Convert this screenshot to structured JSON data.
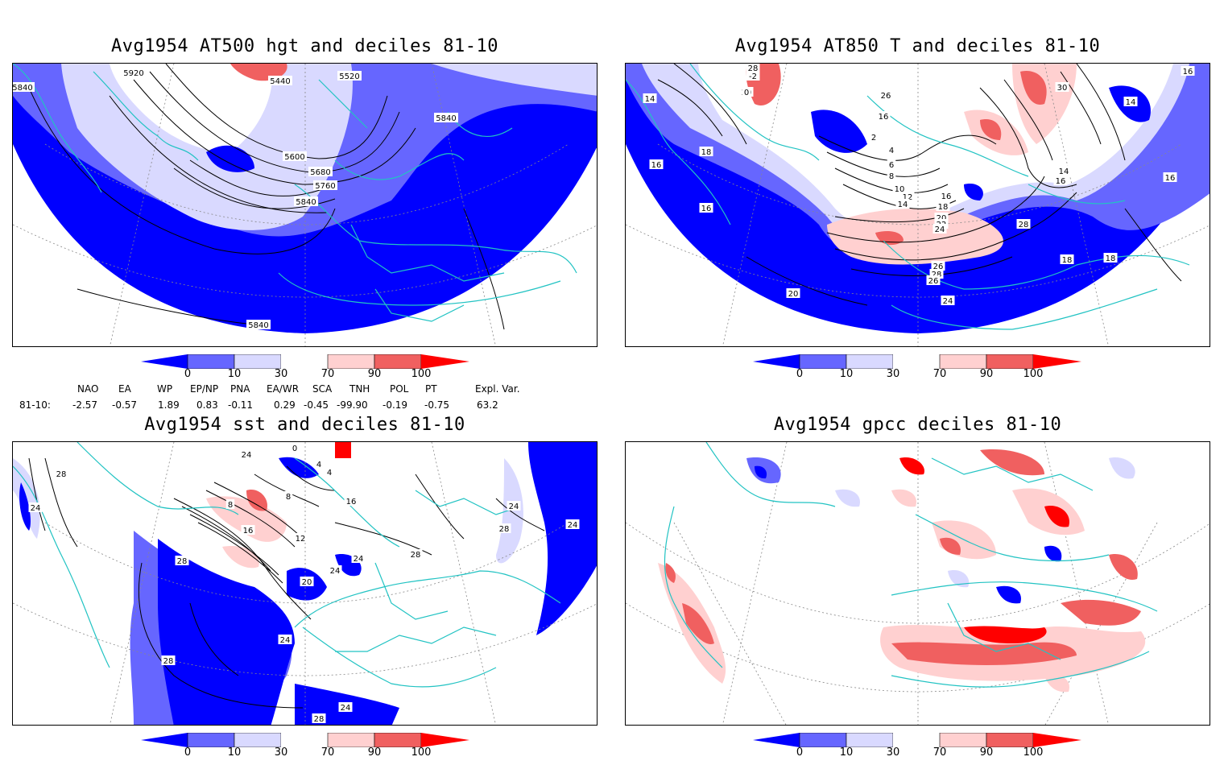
{
  "panels": [
    {
      "id": "p1",
      "title": "Avg1954 AT500 hgt and deciles 81-10",
      "contour_labels": [
        "5920",
        "5440",
        "5520",
        "5840",
        "5600",
        "5680",
        "5760",
        "5840",
        "5840",
        "5840"
      ]
    },
    {
      "id": "p2",
      "title": "Avg1954 AT850 T and deciles 81-10",
      "contour_labels": [
        "24",
        "22",
        "20",
        "14",
        "16",
        "18",
        "16",
        "2",
        "4",
        "6",
        "8",
        "10",
        "12",
        "14",
        "16",
        "18",
        "20",
        "22",
        "24",
        "26",
        "28",
        "26",
        "24",
        "20",
        "16",
        "14",
        "16",
        "18",
        "18",
        "14",
        "16",
        "28",
        "30",
        "26",
        "16",
        "28",
        "-2",
        "0"
      ]
    },
    {
      "id": "p3",
      "title": "Avg1954 sst and deciles 81-10",
      "contour_labels": [
        "28",
        "24",
        "28",
        "28",
        "28",
        "24",
        "0",
        "4",
        "4",
        "8",
        "8",
        "12",
        "16",
        "20",
        "24",
        "24",
        "24",
        "28",
        "24",
        "28",
        "24",
        "24",
        "16"
      ]
    },
    {
      "id": "p4",
      "title": "Avg1954 gpcc deciles 81-10",
      "contour_labels": []
    }
  ],
  "colorbar": {
    "tick_labels": [
      "0",
      "10",
      "30",
      "70",
      "90",
      "100"
    ],
    "colors": {
      "strong_blue": "#0000ff",
      "mid_blue": "#6666ff",
      "light_blue": "#d9d9ff",
      "white": "#ffffff",
      "light_red": "#ffd0d0",
      "mid_red": "#f06060",
      "strong_red": "#ff0000"
    }
  },
  "teleconnections": {
    "headers": [
      "NAO",
      "EA",
      "WP",
      "EP/NP",
      "PNA",
      "EA/WR",
      "SCA",
      "TNH",
      "POL",
      "PT",
      "Expl. Var."
    ],
    "row_label": "81-10:",
    "values": [
      "-2.57",
      "-0.57",
      "1.89",
      "0.83",
      "-0.11",
      "0.29",
      "-0.45",
      "-99.90",
      "-0.19",
      "-0.75",
      "63.2"
    ]
  },
  "colors": {
    "coast": "#22c3c3",
    "contour": "#000000",
    "grid": "#888888"
  }
}
